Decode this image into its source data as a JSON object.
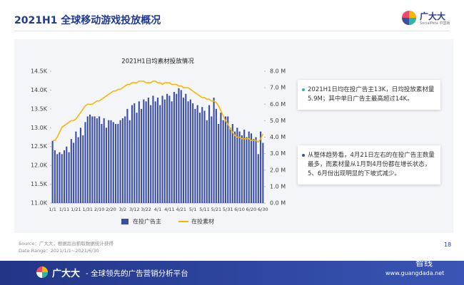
{
  "header": {
    "title": "2021H1 全球移动游戏投放概况"
  },
  "logo": {
    "name": "广大大",
    "sub": "SocialPeta 中国版"
  },
  "notes": [
    "2021H1日均在投广告主13K，日均投放素材量5.9M；其中单日广告主最高超过14K。",
    "从整体趋势看，4月21日左右的在投广告主数量最多，而素材量从1月到4月份都在增长状态，5、6月份出现明显的下坡式减少。"
  ],
  "source": [
    "Source：广大大，根据后台抓取数据统计获得",
    "Date Range：2021/1/1~2021/6/30"
  ],
  "page_number": "18",
  "footer": {
    "brand": "广大大",
    "slogan": "- 全球领先的广告营销分析平台"
  },
  "watermark": {
    "name": "智线",
    "url": "www.guangdada.net"
  },
  "chart_data": {
    "type": "bar",
    "title": "2021H1日均素材投放情况",
    "categories": [
      "1/1",
      null,
      null,
      null,
      null,
      "1/11",
      null,
      null,
      null,
      null,
      "1/21",
      null,
      null,
      null,
      null,
      "1/31",
      null,
      null,
      null,
      null,
      "2/10",
      null,
      null,
      null,
      null,
      "2/20",
      null,
      null,
      null,
      null,
      "3/2",
      null,
      null,
      null,
      null,
      "3/12",
      null,
      null,
      null,
      null,
      "3/22",
      null,
      null,
      null,
      null,
      "4/1",
      null,
      null,
      null,
      null,
      "4/11",
      null,
      null,
      null,
      null,
      "4/21",
      null,
      null,
      null,
      null,
      "5/1",
      null,
      null,
      null,
      null,
      "5/11",
      null,
      null,
      null,
      null,
      "5/21",
      null,
      null,
      null,
      null,
      "5/31",
      null,
      null,
      null,
      null,
      "6/10",
      null,
      null,
      null,
      null,
      "6/20",
      null,
      null,
      null,
      null,
      "6/30"
    ],
    "series": [
      {
        "name": "在投广告主",
        "type": "bar",
        "color": "#3a4ea6",
        "values": [
          12.65,
          12.4,
          12.3,
          12.35,
          12.3,
          12.4,
          12.5,
          12.35,
          12.7,
          12.6,
          12.9,
          12.75,
          13.0,
          12.8,
          13.15,
          13.3,
          13.35,
          13.3,
          13.3,
          13.25,
          13.3,
          13.1,
          13.25,
          13.0,
          13.2,
          13.2,
          13.15,
          13.1,
          13.1,
          13.2,
          13.25,
          13.3,
          13.5,
          13.2,
          13.6,
          13.65,
          13.4,
          13.7,
          13.5,
          13.75,
          13.7,
          13.8,
          13.6,
          13.85,
          13.7,
          13.8,
          13.6,
          13.85,
          13.75,
          13.9,
          13.85,
          13.7,
          13.95,
          13.9,
          14.05,
          14.0,
          13.8,
          13.9,
          13.7,
          13.75,
          13.65,
          13.5,
          13.6,
          13.4,
          13.55,
          13.45,
          13.2,
          13.6,
          13.3,
          13.8,
          13.5,
          13.1,
          13.4,
          13.2,
          13.3,
          13.3,
          13.0,
          13.1,
          12.9,
          13.0,
          12.9,
          12.8,
          12.95,
          12.75,
          12.9,
          12.85,
          12.7,
          12.75,
          12.3,
          12.9,
          12.6
        ]
      },
      {
        "name": "在投素材",
        "type": "line",
        "axis": "y2",
        "color": "#f5b800",
        "values": [
          3.8,
          3.8,
          4.0,
          4.3,
          4.6,
          4.7,
          4.8,
          4.9,
          5.0,
          5.0,
          5.1,
          5.3,
          5.5,
          5.7,
          5.9,
          6.0,
          6.0,
          6.0,
          6.1,
          6.2,
          6.2,
          6.3,
          6.4,
          6.5,
          6.6,
          6.7,
          6.8,
          6.8,
          6.9,
          6.9,
          7.0,
          7.1,
          7.2,
          7.2,
          7.3,
          7.3,
          7.3,
          7.4,
          7.4,
          7.4,
          7.3,
          7.3,
          7.3,
          7.4,
          7.4,
          7.3,
          7.3,
          7.2,
          7.3,
          7.3,
          7.3,
          7.2,
          7.2,
          7.2,
          7.1,
          7.1,
          7.0,
          7.0,
          7.0,
          6.9,
          6.8,
          6.7,
          6.6,
          6.5,
          6.4,
          6.4,
          6.3,
          6.3,
          6.2,
          6.2,
          6.1,
          5.9,
          5.6,
          5.3,
          5.0,
          4.8,
          4.5,
          4.3,
          4.1,
          4.0,
          4.0,
          3.9,
          3.9,
          3.9,
          3.9,
          3.8,
          3.8,
          3.8,
          3.7,
          3.9,
          4.2
        ]
      }
    ],
    "ylim": [
      11,
      14.5
    ],
    "yticks": [
      {
        "value": 11,
        "label": "11.0K"
      },
      {
        "value": 11.5,
        "label": "11.5K"
      },
      {
        "value": 12,
        "label": "12.0K"
      },
      {
        "value": 12.5,
        "label": "12.5K"
      },
      {
        "value": 13,
        "label": "13.0K"
      },
      {
        "value": 13.5,
        "label": "13.5K"
      },
      {
        "value": 14,
        "label": "14.0K"
      },
      {
        "value": 14.5,
        "label": "14.5K"
      }
    ],
    "y2lim": [
      0,
      8
    ],
    "y2ticks": [
      {
        "value": 0,
        "label": "0.0 M"
      },
      {
        "value": 1,
        "label": "1.0 M"
      },
      {
        "value": 2,
        "label": "2.0 M"
      },
      {
        "value": 3,
        "label": "3.0 M"
      },
      {
        "value": 4,
        "label": "4.0 M"
      },
      {
        "value": 5,
        "label": "5.0 M"
      },
      {
        "value": 6,
        "label": "6.0 M"
      },
      {
        "value": 7,
        "label": "7.0 M"
      },
      {
        "value": 8,
        "label": "8.0 M"
      }
    ],
    "legend": "bottom"
  }
}
